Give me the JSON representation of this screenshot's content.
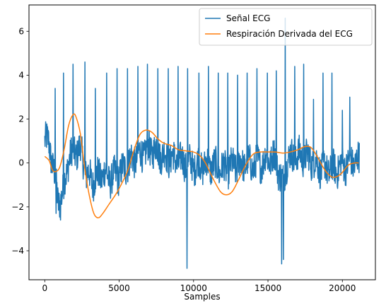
{
  "chart_data": {
    "type": "line",
    "title": "",
    "xlabel": "Samples",
    "ylabel": "",
    "xlim": [
      -1060,
      22220
    ],
    "ylim": [
      -5.32,
      7.2
    ],
    "x_ticks": [
      0,
      5000,
      10000,
      15000,
      20000
    ],
    "x_tick_labels": [
      "0",
      "5000",
      "10000",
      "15000",
      "20000"
    ],
    "y_ticks": [
      -4,
      -2,
      0,
      2,
      4,
      6
    ],
    "y_tick_labels": [
      "−4",
      "−2",
      "0",
      "2",
      "4",
      "6"
    ],
    "grid": false,
    "legend_position": "top-right",
    "series": [
      {
        "name": "Señal ECG",
        "color": "#1f77b4",
        "baseline_points": [
          [
            0,
            1.0
          ],
          [
            300,
            0.9
          ],
          [
            700,
            -0.8
          ],
          [
            900,
            -1.7
          ],
          [
            1200,
            -1.5
          ],
          [
            1600,
            0.2
          ],
          [
            2000,
            0.5
          ],
          [
            2400,
            0.6
          ],
          [
            2800,
            -0.5
          ],
          [
            3200,
            -0.8
          ],
          [
            3600,
            -0.6
          ],
          [
            4000,
            -0.5
          ],
          [
            4400,
            -0.7
          ],
          [
            4800,
            -0.6
          ],
          [
            5200,
            -0.4
          ],
          [
            5600,
            0.0
          ],
          [
            6000,
            0.2
          ],
          [
            6500,
            0.4
          ],
          [
            7000,
            0.6
          ],
          [
            7500,
            0.6
          ],
          [
            8000,
            0.3
          ],
          [
            8500,
            0.2
          ],
          [
            9000,
            0.1
          ],
          [
            9500,
            0.0
          ],
          [
            10000,
            -0.1
          ],
          [
            10500,
            -0.1
          ],
          [
            11000,
            -0.1
          ],
          [
            11500,
            -0.2
          ],
          [
            12000,
            -0.3
          ],
          [
            12500,
            -0.2
          ],
          [
            13000,
            -0.1
          ],
          [
            13500,
            0.0
          ],
          [
            14000,
            -0.1
          ],
          [
            14500,
            0.0
          ],
          [
            15000,
            0.2
          ],
          [
            15500,
            0.2
          ],
          [
            16000,
            -1.0
          ],
          [
            16300,
            0.2
          ],
          [
            16800,
            0.3
          ],
          [
            17500,
            0.3
          ],
          [
            18000,
            0.1
          ],
          [
            18500,
            -0.2
          ],
          [
            19000,
            -0.3
          ],
          [
            19500,
            -0.3
          ],
          [
            20000,
            -0.1
          ],
          [
            20500,
            0.0
          ],
          [
            21100,
            0.1
          ]
        ],
        "r_peaks": [
          [
            250,
            1.4
          ],
          [
            700,
            3.4
          ],
          [
            1250,
            4.1
          ],
          [
            1900,
            4.5
          ],
          [
            2700,
            4.6
          ],
          [
            3400,
            3.4
          ],
          [
            4150,
            4.1
          ],
          [
            4850,
            4.3
          ],
          [
            5550,
            4.3
          ],
          [
            6250,
            4.4
          ],
          [
            6900,
            4.5
          ],
          [
            7600,
            4.3
          ],
          [
            8300,
            4.3
          ],
          [
            8950,
            4.4
          ],
          [
            9600,
            4.3
          ],
          [
            10350,
            4.1
          ],
          [
            11000,
            4.4
          ],
          [
            11650,
            4.1
          ],
          [
            12300,
            4.1
          ],
          [
            12950,
            4.0
          ],
          [
            13600,
            4.1
          ],
          [
            14250,
            4.3
          ],
          [
            14950,
            4.1
          ],
          [
            15550,
            4.2
          ],
          [
            16150,
            6.6
          ],
          [
            16800,
            4.4
          ],
          [
            17400,
            4.5
          ],
          [
            18050,
            2.9
          ],
          [
            18700,
            4.1
          ],
          [
            19300,
            4.1
          ],
          [
            20000,
            2.4
          ],
          [
            20500,
            3.0
          ]
        ],
        "dips": [
          [
            750,
            -2.3
          ],
          [
            1050,
            -2.6
          ],
          [
            9550,
            -4.8
          ],
          [
            15920,
            -4.6
          ],
          [
            16030,
            -4.4
          ]
        ]
      },
      {
        "name": "Respiración Derivada del ECG",
        "color": "#ff7f0e",
        "points": [
          [
            0,
            0.3
          ],
          [
            300,
            0.1
          ],
          [
            500,
            -0.3
          ],
          [
            700,
            -0.4
          ],
          [
            1000,
            -0.2
          ],
          [
            1300,
            0.6
          ],
          [
            1600,
            1.7
          ],
          [
            1900,
            2.2
          ],
          [
            2100,
            2.1
          ],
          [
            2400,
            1.3
          ],
          [
            2700,
            -0.3
          ],
          [
            3000,
            -1.5
          ],
          [
            3300,
            -2.3
          ],
          [
            3600,
            -2.5
          ],
          [
            3900,
            -2.3
          ],
          [
            4300,
            -1.9
          ],
          [
            4800,
            -1.4
          ],
          [
            5200,
            -0.9
          ],
          [
            5600,
            -0.3
          ],
          [
            6000,
            0.6
          ],
          [
            6400,
            1.3
          ],
          [
            6800,
            1.5
          ],
          [
            7200,
            1.4
          ],
          [
            7600,
            1.1
          ],
          [
            8000,
            0.9
          ],
          [
            8500,
            0.8
          ],
          [
            9000,
            0.6
          ],
          [
            9500,
            0.55
          ],
          [
            10000,
            0.5
          ],
          [
            10400,
            0.35
          ],
          [
            10800,
            0.0
          ],
          [
            11300,
            -0.7
          ],
          [
            11800,
            -1.3
          ],
          [
            12200,
            -1.45
          ],
          [
            12600,
            -1.3
          ],
          [
            13000,
            -0.8
          ],
          [
            13500,
            -0.1
          ],
          [
            14000,
            0.4
          ],
          [
            14500,
            0.5
          ],
          [
            15000,
            0.5
          ],
          [
            15500,
            0.5
          ],
          [
            16000,
            0.45
          ],
          [
            16500,
            0.5
          ],
          [
            17000,
            0.6
          ],
          [
            17500,
            0.75
          ],
          [
            17900,
            0.7
          ],
          [
            18300,
            0.3
          ],
          [
            18800,
            -0.3
          ],
          [
            19200,
            -0.6
          ],
          [
            19500,
            -0.65
          ],
          [
            19900,
            -0.5
          ],
          [
            20400,
            -0.1
          ],
          [
            20800,
            0.0
          ],
          [
            21100,
            0.0
          ]
        ]
      }
    ]
  }
}
